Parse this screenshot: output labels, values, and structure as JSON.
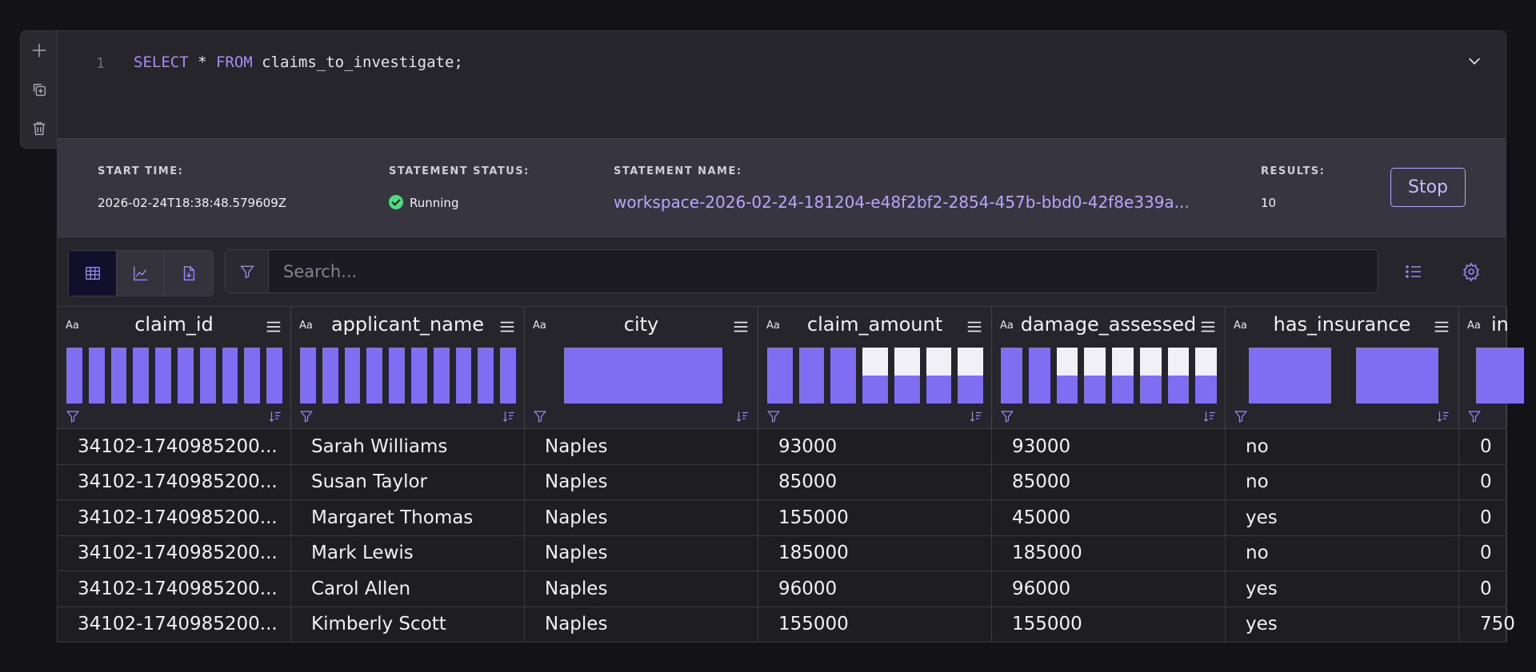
{
  "rail": {
    "items": [
      {
        "name": "add-cell-button",
        "icon": "plus-icon"
      },
      {
        "name": "duplicate-cell-button",
        "icon": "copy-icon"
      },
      {
        "name": "delete-cell-button",
        "icon": "trash-icon"
      }
    ]
  },
  "editor": {
    "line_number": "1",
    "kw_select": "SELECT",
    "star": " * ",
    "kw_from": "FROM",
    "rest": " claims_to_investigate;"
  },
  "status": {
    "start_time_label": "START TIME:",
    "start_time_value": "2026-02-24T18:38:48.579609Z",
    "statement_status_label": "STATEMENT STATUS:",
    "statement_status_value": "Running",
    "statement_name_label": "STATEMENT NAME:",
    "statement_name_value": "workspace-2026-02-24-181204-e48f2bf2-2854-457b-bbd0-42f8e339a...",
    "results_label": "RESULTS:",
    "results_value": "10",
    "stop_label": "Stop"
  },
  "toolbar": {
    "views": [
      {
        "name": "table-view-button",
        "icon": "table-icon",
        "active": true
      },
      {
        "name": "chart-view-button",
        "icon": "line-chart-icon",
        "active": false
      },
      {
        "name": "export-button",
        "icon": "file-export-icon",
        "active": false
      }
    ],
    "search_placeholder": "Search..."
  },
  "columns": [
    {
      "name": "claim_id",
      "type": "Aa",
      "hist": [
        1,
        1,
        1,
        1,
        1,
        1,
        1,
        1,
        1,
        1
      ]
    },
    {
      "name": "applicant_name",
      "type": "Aa",
      "hist": [
        1,
        1,
        1,
        1,
        1,
        1,
        1,
        1,
        1,
        1
      ]
    },
    {
      "name": "city",
      "type": "Aa",
      "hist": "single"
    },
    {
      "name": "claim_amount",
      "type": "Aa",
      "hist": [
        1,
        1,
        1,
        0.5,
        0.5,
        0.5,
        0.5
      ]
    },
    {
      "name": "damage_assessed",
      "type": "Aa",
      "hist": [
        1,
        1,
        0.5,
        0.5,
        0.5,
        0.5,
        0.5,
        0.5
      ]
    },
    {
      "name": "has_insurance",
      "type": "Aa",
      "hist": "two"
    },
    {
      "name": "in",
      "type": "Aa",
      "hist": "partial"
    }
  ],
  "rows": [
    [
      "34102-1740985200...",
      "Sarah Williams",
      "Naples",
      "93000",
      "93000",
      "no",
      "0"
    ],
    [
      "34102-1740985200...",
      "Susan Taylor",
      "Naples",
      "85000",
      "85000",
      "no",
      "0"
    ],
    [
      "34102-1740985200...",
      "Margaret Thomas",
      "Naples",
      "155000",
      "45000",
      "yes",
      "0"
    ],
    [
      "34102-1740985200...",
      "Mark Lewis",
      "Naples",
      "185000",
      "185000",
      "no",
      "0"
    ],
    [
      "34102-1740985200...",
      "Carol Allen",
      "Naples",
      "96000",
      "96000",
      "yes",
      "0"
    ],
    [
      "34102-1740985200...",
      "Kimberly Scott",
      "Naples",
      "155000",
      "155000",
      "yes",
      "750"
    ]
  ],
  "colors": {
    "accent": "#7f6df2",
    "link": "#b9a6ff",
    "running": "#4ade80"
  }
}
